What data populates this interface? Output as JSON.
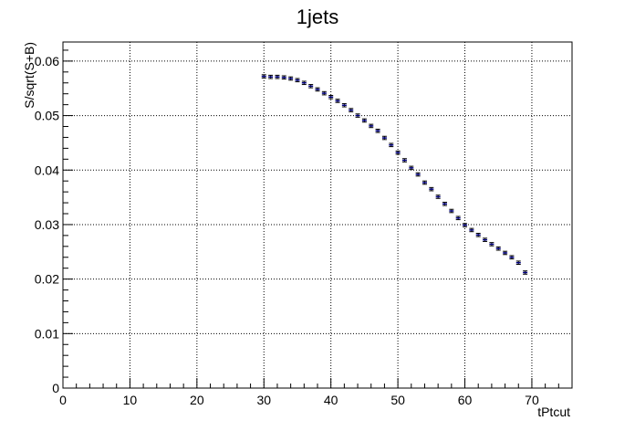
{
  "chart_data": {
    "type": "scatter",
    "title": "1jets",
    "xlabel": "tPtcut",
    "ylabel": "S/sqrt(S+B)",
    "xlim": [
      0,
      76
    ],
    "ylim": [
      0,
      0.0635
    ],
    "x_ticks": [
      0,
      10,
      20,
      30,
      40,
      50,
      60,
      70
    ],
    "x_tick_labels": [
      "0",
      "10",
      "20",
      "30",
      "40",
      "50",
      "60",
      "70"
    ],
    "y_ticks": [
      0,
      0.01,
      0.02,
      0.03,
      0.04,
      0.05,
      0.06
    ],
    "y_tick_labels": [
      "0",
      "0.01",
      "0.02",
      "0.03",
      "0.04",
      "0.05",
      "0.06"
    ],
    "grid": true,
    "marker_color": "#000080",
    "series": [
      {
        "x": [
          30,
          31,
          32,
          33,
          34,
          35,
          36,
          37,
          38,
          39,
          40,
          41,
          42,
          43,
          44,
          45,
          46,
          47,
          48,
          49,
          50,
          51,
          52,
          53,
          54,
          55,
          56,
          57,
          58,
          59,
          60,
          61,
          62,
          63,
          64,
          65,
          66,
          67,
          68,
          69
        ],
        "y": [
          0.0572,
          0.0571,
          0.0571,
          0.057,
          0.0568,
          0.0565,
          0.056,
          0.0554,
          0.0548,
          0.0541,
          0.0534,
          0.0527,
          0.0519,
          0.051,
          0.05,
          0.0491,
          0.0481,
          0.0472,
          0.0459,
          0.0446,
          0.0432,
          0.0418,
          0.0404,
          0.0392,
          0.0377,
          0.0365,
          0.0351,
          0.0338,
          0.0325,
          0.0312,
          0.0299,
          0.029,
          0.0281,
          0.0272,
          0.0264,
          0.0256,
          0.0248,
          0.024,
          0.023,
          0.0212
        ],
        "err": [
          0.0003,
          0.0003,
          0.0003,
          0.0003,
          0.0003,
          0.0003,
          0.0003,
          0.0003,
          0.0003,
          0.0003,
          0.0003,
          0.0003,
          0.0003,
          0.0003,
          0.0003,
          0.0003,
          0.0003,
          0.0003,
          0.0003,
          0.0003,
          0.0003,
          0.0003,
          0.0003,
          0.0003,
          0.0003,
          0.0003,
          0.0003,
          0.0003,
          0.0003,
          0.0003,
          0.0003,
          0.0003,
          0.0003,
          0.0003,
          0.0003,
          0.0003,
          0.0003,
          0.0003,
          0.0003,
          0.0003
        ]
      }
    ]
  }
}
